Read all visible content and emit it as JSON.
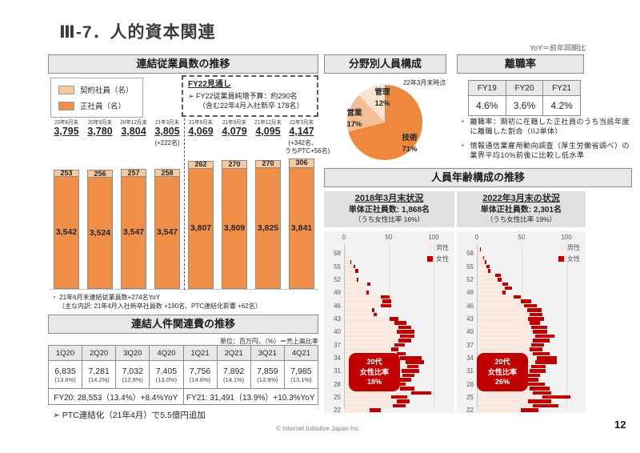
{
  "page": {
    "title": "Ⅲ-7．人的資本関連",
    "yoy_note": "YoY＝前年同期比",
    "footer_copyright": "© Internet Initiative Japan Inc.",
    "page_number": "12"
  },
  "employees_panel": {
    "header": "連結従業員数の推移",
    "legend": [
      {
        "label": "契約社員（名）",
        "color": "#F7C99F"
      },
      {
        "label": "正社員（名）",
        "color": "#EF8F48"
      }
    ],
    "fy22_box": {
      "title": "FY22見通し",
      "lines": [
        "➢ FY22従業員純増予算：約290名",
        "（含む22年4月入社新卒 178名）"
      ]
    },
    "notes": [
      "・ 21年6月末連結従業員数+274名YoY",
      "（主な内訳: 21年4月入社新卒社員数 +190名、PTC連結化影響 +62名）"
    ]
  },
  "costs_panel": {
    "header": "連結人件関連費の推移",
    "unit_note": "単位：百万円、（%）＝売上高比率",
    "columns": [
      "1Q20",
      "2Q20",
      "3Q20",
      "4Q20",
      "1Q21",
      "2Q21",
      "3Q21",
      "4Q21"
    ],
    "values": [
      "6,835",
      "7,281",
      "7,032",
      "7,405",
      "7,756",
      "7,892",
      "7,859",
      "7,985"
    ],
    "ratios": [
      "(13.6%)",
      "(14.2%)",
      "(12.9%)",
      "(13.0%)",
      "(14.6%)",
      "(14.1%)",
      "(13.9%)",
      "(13.1%)"
    ],
    "fy20_summary": "FY20: 28,553（13.4%）+8.4%YoY",
    "fy21_summary": "FY21: 31,491（13.9%）+10.3%YoY",
    "ptc_note": "➢ PTC連結化（21年4月）で5.5億円追加"
  },
  "turnover_panel": {
    "header": "離職率",
    "columns": [
      "FY19",
      "FY20",
      "FY21"
    ],
    "values": [
      "4.6%",
      "3.6%",
      "4.2%"
    ],
    "bullet": "・",
    "notes": [
      "離職率：期初に在籍した正社員のうち当該年度に離職した割合（IIJ単体）",
      "情報通信業雇用動向調査（厚生労働省調べ）の業界平均10%前後に比較し低水準"
    ]
  },
  "age_panel": {
    "header": "人員年齢構成の推移"
  },
  "chart_data": [
    {
      "id": "employees_stacked_bar",
      "type": "bar",
      "stacked": true,
      "categories": [
        "20年6月末",
        "20年9月末",
        "20年12月末",
        "21年3月末",
        "21年6月末",
        "21年9月末",
        "21年12月末",
        "22年3月末"
      ],
      "series": [
        {
          "name": "正社員（名）",
          "color": "#EF8F48",
          "values": [
            3542,
            3524,
            3547,
            3547,
            3807,
            3809,
            3825,
            3841
          ]
        },
        {
          "name": "契約社員（名）",
          "color": "#F7C99F",
          "values": [
            253,
            256,
            257,
            258,
            262,
            270,
            270,
            306
          ]
        }
      ],
      "totals": [
        3795,
        3780,
        3804,
        3805,
        4069,
        4079,
        4095,
        4147
      ],
      "annotations": {
        "3": [
          "(+222名)"
        ],
        "7": [
          "(+342名、",
          "うちPTC+56名)"
        ]
      },
      "divider_after": 3
    },
    {
      "id": "field_composition_pie",
      "type": "pie",
      "title": "分野別人員構成",
      "caption": "22年3月末時点",
      "slices": [
        {
          "label": "技術",
          "value": 71,
          "color": "#ED883C"
        },
        {
          "label": "営業",
          "value": 17,
          "color": "#F4BE97"
        },
        {
          "label": "管理",
          "value": 12,
          "color": "#FBE4CF"
        }
      ]
    },
    {
      "id": "age_pyramid_2018",
      "type": "bar",
      "orientation": "horizontal",
      "title": "2018年3月末状況",
      "headcount": "単体正社員数: 1,868名",
      "female_ratio": "（うち女性比率 16%）",
      "badge": [
        "20代",
        "女性比率",
        "18%"
      ],
      "badge_color": "#C00000",
      "x_ticks": [
        0,
        50,
        100
      ],
      "legend": [
        "男性",
        "女性"
      ],
      "male_color": "#FBE7DB",
      "female_color": "#C00000",
      "ages": [
        59,
        58,
        57,
        56,
        55,
        54,
        53,
        52,
        51,
        50,
        49,
        48,
        47,
        46,
        45,
        44,
        43,
        42,
        41,
        40,
        39,
        38,
        37,
        36,
        35,
        34,
        33,
        32,
        31,
        30,
        29,
        28,
        27,
        26,
        25,
        24,
        23,
        22
      ],
      "male": [
        2,
        3,
        4,
        6,
        10,
        12,
        10,
        13,
        25,
        22,
        24,
        40,
        42,
        40,
        30,
        32,
        50,
        55,
        60,
        58,
        62,
        60,
        55,
        52,
        58,
        62,
        68,
        70,
        63,
        64,
        58,
        54,
        62,
        74,
        52,
        58,
        54,
        28
      ],
      "female": [
        0,
        0,
        0,
        1,
        2,
        3,
        0,
        2,
        4,
        0,
        3,
        10,
        10,
        12,
        3,
        4,
        10,
        14,
        14,
        20,
        16,
        14,
        12,
        8,
        10,
        24,
        20,
        12,
        20,
        14,
        16,
        14,
        16,
        22,
        18,
        14,
        14,
        12
      ]
    },
    {
      "id": "age_pyramid_2022",
      "type": "bar",
      "orientation": "horizontal",
      "title": "2022年3月末の状況",
      "headcount": "単体正社員数: 2,301名",
      "female_ratio": "（うち女性比率 19%）",
      "badge": [
        "20代",
        "女性比率",
        "26%"
      ],
      "badge_color": "#C00000",
      "x_ticks": [
        0,
        50,
        100
      ],
      "legend": [
        "男性",
        "女性"
      ],
      "male_color": "#FBE7DB",
      "female_color": "#C00000",
      "ages": [
        59,
        58,
        57,
        56,
        55,
        54,
        53,
        52,
        51,
        50,
        49,
        48,
        47,
        46,
        45,
        44,
        43,
        42,
        41,
        40,
        39,
        38,
        37,
        36,
        35,
        34,
        33,
        32,
        31,
        30,
        29,
        28,
        27,
        26,
        25,
        24,
        23,
        22
      ],
      "male": [
        3,
        5,
        6,
        8,
        10,
        12,
        20,
        22,
        28,
        30,
        28,
        40,
        48,
        52,
        55,
        58,
        56,
        58,
        60,
        62,
        64,
        62,
        60,
        58,
        62,
        66,
        64,
        60,
        58,
        56,
        52,
        55,
        58,
        62,
        72,
        56,
        62,
        48
      ],
      "female": [
        1,
        0,
        1,
        2,
        3,
        2,
        6,
        5,
        6,
        8,
        3,
        8,
        12,
        14,
        16,
        14,
        18,
        12,
        18,
        16,
        22,
        18,
        14,
        14,
        18,
        22,
        24,
        16,
        18,
        14,
        16,
        20,
        22,
        20,
        32,
        26,
        28,
        20
      ]
    }
  ]
}
